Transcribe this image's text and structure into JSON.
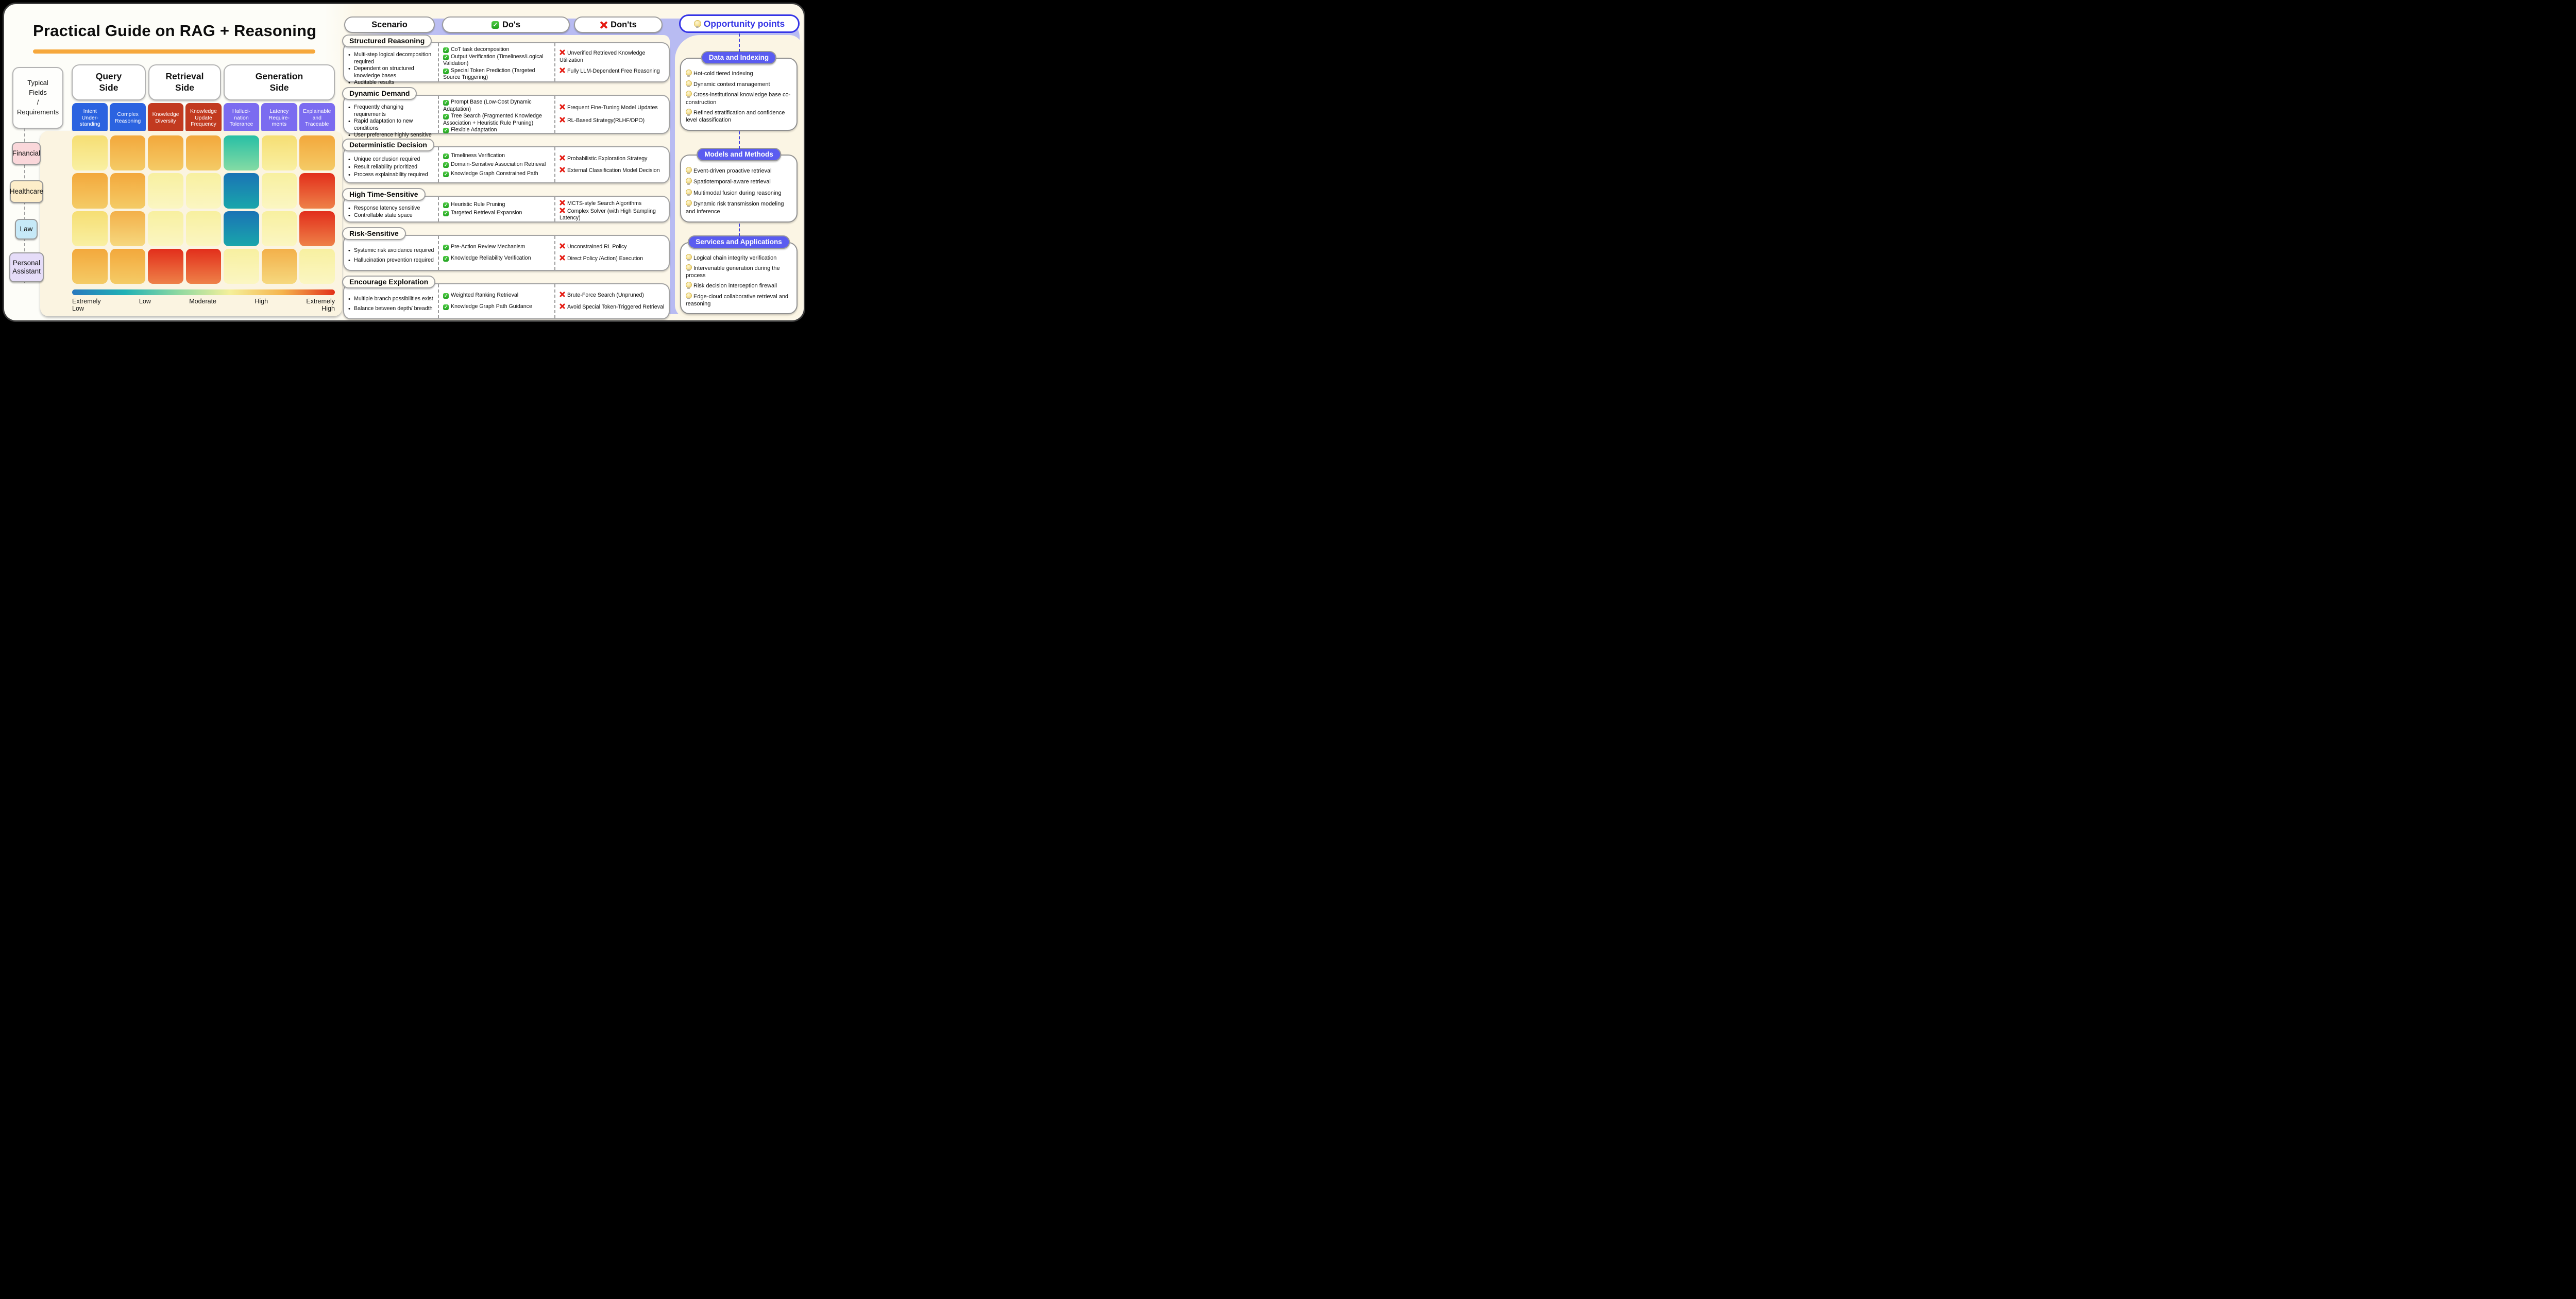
{
  "title": "Practical Guide on RAG + Reasoning",
  "colors": {
    "accent_orange": "#f6a83c",
    "lavender": "#b8bbf2",
    "cream": "#fcf7e9",
    "heatmap_panel": "#fbf4e1",
    "opportunity_blue": "#3434e6",
    "opportunity_header_bg": "#5a5cf0",
    "do_green": "#2ab027",
    "dont_red": "#e51b12",
    "chip_query_blue": "#2b63e0",
    "chip_retrieval_red": "#c23a1f",
    "chip_generation_purple": "#7b6cf0"
  },
  "heatmap": {
    "row_axis_label": "Typical\nFields\n/\nRequirements",
    "groups": [
      {
        "label": "Query Side",
        "lines": "Query\nSide"
      },
      {
        "label": "Retrieval Side",
        "lines": "Retrieval\nSide"
      },
      {
        "label": "Generation Side",
        "lines": "Generation\nSide"
      }
    ],
    "columns": [
      {
        "label": "Intent Understanding",
        "lines": "Intent\nUnder-\nstanding",
        "color": "#2b63e0"
      },
      {
        "label": "Complex Reasoning",
        "lines": "Complex\nReasoning",
        "color": "#2b63e0"
      },
      {
        "label": "Knowledge Diversity",
        "lines": "Knowledge\nDiversity",
        "color": "#c23a1f"
      },
      {
        "label": "Knowledge Update Frequency",
        "lines": "Knowledge\nUpdate\nFrequency",
        "color": "#c23a1f"
      },
      {
        "label": "Hallucination Tolerance",
        "lines": "Halluci-\nnation\nTolerance",
        "color": "#7b6cf0"
      },
      {
        "label": "Latency Requirements",
        "lines": "Latency\nRequire-\nments",
        "color": "#7b6cf0"
      },
      {
        "label": "Explainable and Traceable",
        "lines": "Explainable\nand\nTraceable",
        "color": "#7b6cf0"
      }
    ],
    "palette": {
      "extremely_low": [
        "#1a73b5",
        "#19a6ab"
      ],
      "low": [
        "#27bfa5",
        "#84dba4"
      ],
      "moderate": [
        "#f6de74",
        "#f9f0a2"
      ],
      "moderate_pale": [
        "#f8f0a0",
        "#fbf6c2"
      ],
      "high": [
        "#f3a83c",
        "#f4cb66"
      ],
      "high_soft": [
        "#f3b04a",
        "#f6d87e"
      ],
      "extremely_high": [
        "#e22e1b",
        "#ee8148"
      ]
    },
    "rows": [
      {
        "label": "Financial",
        "lines": "Financial",
        "label_bg": "#fad7da",
        "cells": [
          "moderate",
          "high",
          "high",
          "high",
          "low",
          "moderate",
          "high"
        ]
      },
      {
        "label": "Healthcare",
        "lines": "Healthcare",
        "label_bg": "#fdedc9",
        "cells": [
          "high",
          "high",
          "moderate_pale",
          "moderate_pale",
          "extremely_low",
          "moderate_pale",
          "extremely_high"
        ]
      },
      {
        "label": "Law",
        "lines": "Law",
        "label_bg": "#c6e9f8",
        "cells": [
          "moderate",
          "high_soft",
          "moderate_pale",
          "moderate_pale",
          "extremely_low",
          "moderate_pale",
          "extremely_high"
        ]
      },
      {
        "label": "Personal Assistant",
        "lines": "Personal\nAssistant",
        "label_bg": "#e5dcf8",
        "cells": [
          "high",
          "high",
          "extremely_high",
          "extremely_high",
          "moderate_pale",
          "high_soft",
          "moderate_pale"
        ]
      }
    ],
    "legend": {
      "labels": [
        "Extremely\nLow",
        "Low",
        "Moderate",
        "High",
        "Extremely\nHigh"
      ],
      "gradient_stops": [
        "#2878be",
        "#21b1b5",
        "#8cd8a1",
        "#f5f09a",
        "#f5b44d",
        "#e23019"
      ]
    }
  },
  "table": {
    "headers": {
      "scenario": "Scenario",
      "dos": "Do's",
      "donts": "Don'ts"
    },
    "rows": [
      {
        "scenario": "Structured Reasoning",
        "points": [
          "Multi-step logical decomposition required",
          "Dependent on structured knowledge bases",
          "Auditable results"
        ],
        "dos": [
          "CoT task decomposition",
          "Output Verification (Timeliness/Logical Validation)",
          "Special Token Prediction (Targeted Source Triggering)"
        ],
        "donts": [
          "Unverified Retrieved Knowledge Utilization",
          "Fully LLM-Dependent Free Reasoning"
        ]
      },
      {
        "scenario": "Dynamic Demand",
        "points": [
          "Frequently changing requirements",
          "Rapid adaptation to new conditions",
          "User preference highly sensitive"
        ],
        "dos": [
          "Prompt Base (Low-Cost Dynamic Adaptation)",
          "Tree Search (Fragmented Knowledge Association + Heuristic Rule Pruning)",
          "Flexible Adaptation"
        ],
        "donts": [
          "Frequent Fine-Tuning Model Updates",
          "RL-Based Strategy(RLHF/DPO)"
        ]
      },
      {
        "scenario": "Deterministic Decision",
        "points": [
          "Unique conclusion required",
          "Result reliability prioritized",
          "Process explainability required"
        ],
        "dos": [
          "Timeliness Verification",
          "Domain-Sensitive Association Retrieval",
          "Knowledge Graph Constrained Path"
        ],
        "donts": [
          "Probabilistic Exploration Strategy",
          "External Classification Model Decision"
        ]
      },
      {
        "scenario": "High Time-Sensitive",
        "points": [
          "Response latency sensitive",
          "Controllable state space"
        ],
        "dos": [
          "Heuristic Rule Pruning",
          "Targeted Retrieval Expansion"
        ],
        "donts": [
          "MCTS-style Search Algorithms",
          "Complex Solver (with High Sampling Latency)"
        ]
      },
      {
        "scenario": "Risk-Sensitive",
        "points": [
          "Systemic risk avoidance required",
          "Hallucination prevention required"
        ],
        "dos": [
          "Pre-Action Review Mechanism",
          "Knowledge Reliability Verification"
        ],
        "donts": [
          "Unconstrained RL Policy",
          "Direct Policy /Action) Execution"
        ]
      },
      {
        "scenario": "Encourage Exploration",
        "points": [
          "Multiple branch possibilities exist",
          "Balance between depth/ breadth"
        ],
        "dos": [
          "Weighted Ranking Retrieval",
          "Knowledge Graph Path Guidance"
        ],
        "donts": [
          "Brute-Force Search (Unpruned)",
          "Avoid Special Token-Triggered Retrieval"
        ]
      }
    ]
  },
  "opportunity": {
    "title": "Opportunity points",
    "sections": [
      {
        "title": "Data and Indexing",
        "items": [
          "Hot-cold tiered indexing",
          "Dynamic context management",
          "Cross-institutional knowledge base co-construction",
          "Refined stratification and confidence level classification"
        ]
      },
      {
        "title": "Models and Methods",
        "items": [
          "Event-driven proactive retrieval",
          "Spatiotemporal-aware retrieval",
          "Multimodal fusion during reasoning",
          "Dynamic risk transmission modeling and inference"
        ]
      },
      {
        "title": "Services and Applications",
        "items": [
          "Logical chain integrity verification",
          "Intervenable generation during the process",
          "Risk decision interception firewall",
          "Edge-cloud collaborative retrieval and reasoning"
        ]
      }
    ]
  },
  "chart_data": {
    "type": "heatmap",
    "title": "Typical Fields / Requirements intensity matrix",
    "x_categories": [
      "Intent Understanding",
      "Complex Reasoning",
      "Knowledge Diversity",
      "Knowledge Update Frequency",
      "Hallucination Tolerance",
      "Latency Requirements",
      "Explainable and Traceable"
    ],
    "x_groups": [
      [
        "Query Side",
        2
      ],
      [
        "Retrieval Side",
        2
      ],
      [
        "Generation Side",
        3
      ]
    ],
    "y_categories": [
      "Financial",
      "Healthcare",
      "Law",
      "Personal Assistant"
    ],
    "scale": [
      "Extremely Low",
      "Low",
      "Moderate",
      "High",
      "Extremely High"
    ],
    "matrix": [
      [
        "Moderate",
        "High",
        "High",
        "High",
        "Low",
        "Moderate",
        "High"
      ],
      [
        "High",
        "High",
        "Moderate",
        "Moderate",
        "Extremely Low",
        "Moderate",
        "Extremely High"
      ],
      [
        "Moderate",
        "High",
        "Moderate",
        "Moderate",
        "Extremely Low",
        "Moderate",
        "Extremely High"
      ],
      [
        "High",
        "High",
        "Extremely High",
        "Extremely High",
        "Moderate",
        "High",
        "Moderate"
      ]
    ],
    "legend_position": "bottom",
    "grid": false
  }
}
